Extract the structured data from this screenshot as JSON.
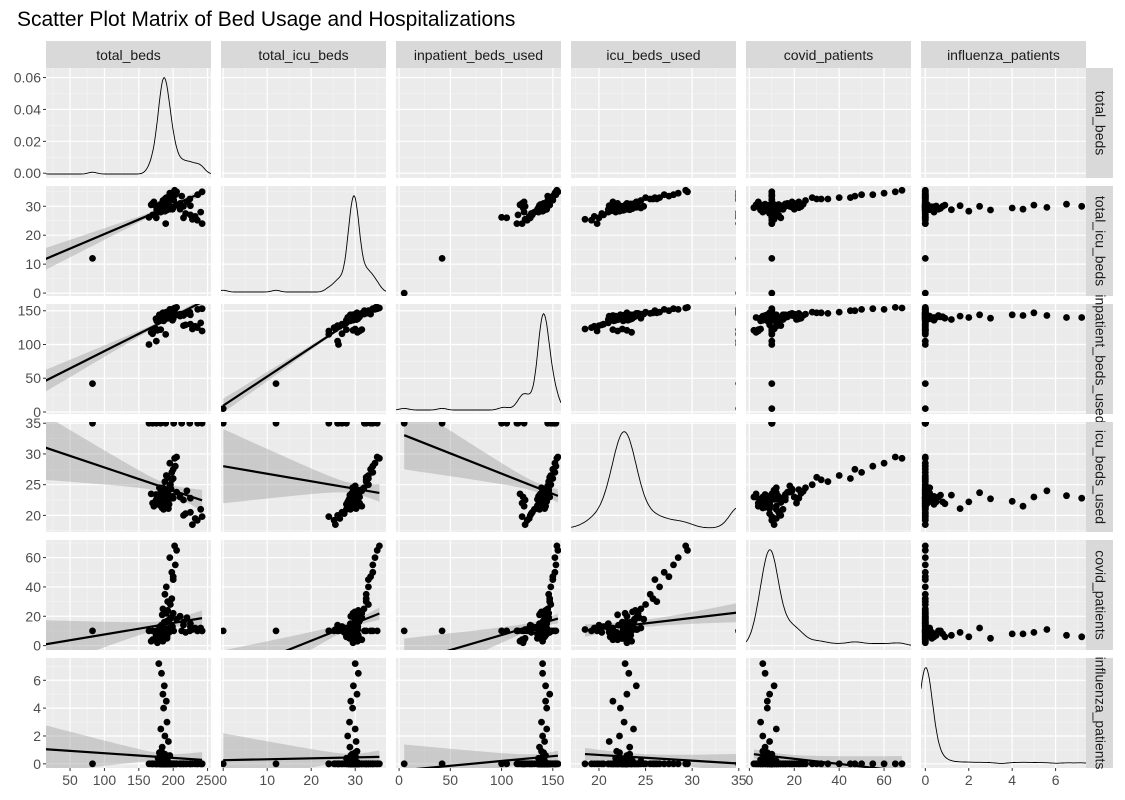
{
  "chart_data": {
    "type": "scatter",
    "title": "Scatter Plot Matrix of Bed Usage and Hospitalizations",
    "variables": [
      "total_beds",
      "total_icu_beds",
      "inpatient_beds_used",
      "icu_beds_used",
      "covid_patients",
      "influenza_patients"
    ],
    "panel_layout": "diagonal: density curve; lower triangle: scatter with linear fit and confidence band; upper triangle: scatter",
    "grid": true,
    "x_axes": [
      {
        "range": [
          15,
          255
        ],
        "ticks": [
          50,
          100,
          150,
          200,
          250
        ]
      },
      {
        "range": [
          -0.5,
          37
        ],
        "ticks": [
          0,
          10,
          20,
          30
        ]
      },
      {
        "range": [
          -3,
          158
        ],
        "ticks": [
          0,
          50,
          100,
          150
        ]
      },
      {
        "range": [
          17,
          34.7
        ],
        "ticks": [
          20,
          25,
          30,
          35
        ]
      },
      {
        "range": [
          -1.5,
          72
        ],
        "ticks": [
          0,
          20,
          40,
          60
        ]
      },
      {
        "range": [
          -0.2,
          7.4
        ],
        "ticks": [
          0,
          2,
          4,
          6
        ]
      }
    ],
    "y_axes": [
      {
        "range": [
          -0.003,
          0.066
        ],
        "ticks": [
          0.0,
          0.02,
          0.04,
          0.06
        ],
        "tick_labels": [
          "0.00",
          "0.02",
          "0.04",
          "0.06"
        ]
      },
      {
        "range": [
          -1,
          37
        ],
        "ticks": [
          0,
          10,
          20,
          30
        ]
      },
      {
        "range": [
          -3,
          160
        ],
        "ticks": [
          0,
          50,
          100,
          150
        ]
      },
      {
        "range": [
          17.3,
          35.2
        ],
        "ticks": [
          20,
          25,
          30,
          35
        ]
      },
      {
        "range": [
          -3,
          72
        ],
        "ticks": [
          0,
          20,
          40,
          60
        ]
      },
      {
        "range": [
          -0.3,
          7.6
        ],
        "ticks": [
          0,
          2,
          4,
          6
        ]
      }
    ],
    "points": [
      [
        2.0,
        0.0,
        5,
        35,
        10,
        0.0
      ],
      [
        82.7,
        12.0,
        42,
        35,
        10,
        0.0
      ],
      [
        164.8,
        26.2,
        100,
        35,
        10,
        0.0
      ],
      [
        170.1,
        27.0,
        116,
        35,
        10,
        0.0
      ],
      [
        175.4,
        26.0,
        105,
        35,
        10,
        0.0
      ],
      [
        181.8,
        28.0,
        122,
        35,
        10,
        0.0
      ],
      [
        189.1,
        24.0,
        115,
        35,
        10,
        0.0
      ],
      [
        200.7,
        32.1,
        150,
        35,
        10,
        0.0
      ],
      [
        212.4,
        33.5,
        145,
        35,
        10,
        0.0
      ],
      [
        224.1,
        32.5,
        148,
        35,
        10,
        0.0
      ],
      [
        235.6,
        34.0,
        152,
        35,
        10,
        0.0
      ],
      [
        242.0,
        35.0,
        153,
        35,
        10,
        0.0
      ],
      [
        179.0,
        30.0,
        140,
        22.8,
        6.0,
        7.2
      ],
      [
        183.0,
        30.7,
        140,
        23.2,
        7.0,
        6.5
      ],
      [
        187.0,
        29.6,
        143,
        24.0,
        11.0,
        5.6
      ],
      [
        185.0,
        30.4,
        147,
        23.0,
        9.0,
        5.0
      ],
      [
        190.0,
        29.0,
        143,
        21.5,
        8.0,
        4.5
      ],
      [
        186.0,
        29.4,
        144,
        22.3,
        8.0,
        4.0
      ],
      [
        191.0,
        28.7,
        139,
        22.7,
        5.0,
        3.0
      ],
      [
        182.0,
        30.0,
        144,
        23.7,
        12.0,
        2.5
      ],
      [
        188.0,
        28.3,
        140,
        22.2,
        6.0,
        2.0
      ],
      [
        193.0,
        30.2,
        142,
        21.1,
        9.0,
        1.6
      ],
      [
        184.0,
        28.8,
        137,
        23.3,
        7.0,
        1.2
      ],
      [
        180.0,
        30.0,
        141,
        22.2,
        8.0,
        0.8
      ],
      [
        195.0,
        29.0,
        143,
        23.0,
        10.0,
        0.6
      ],
      [
        178.0,
        28.0,
        136,
        21.8,
        6.0,
        0.4
      ],
      [
        185.0,
        29.8,
        138,
        22.5,
        5.0,
        0.3
      ],
      [
        192.0,
        29.2,
        141,
        23.6,
        11.0,
        0.2
      ],
      [
        187.0,
        30.5,
        139,
        22.0,
        7.0,
        0.1
      ],
      [
        183.0,
        29.1,
        136,
        21.4,
        9.0,
        0.0
      ],
      [
        189.0,
        28.6,
        140,
        22.4,
        8.0,
        0.0
      ],
      [
        181.0,
        30.3,
        137,
        23.0,
        6.0,
        0.0
      ],
      [
        194.0,
        29.5,
        142,
        22.6,
        12.0,
        0.0
      ],
      [
        186.0,
        28.9,
        135,
        21.6,
        5.0,
        0.0
      ],
      [
        175.0,
        30.1,
        138,
        23.4,
        7.0,
        0.0
      ],
      [
        196.0,
        29.9,
        144,
        22.9,
        10.0,
        0.0
      ],
      [
        184.0,
        29.3,
        139,
        21.2,
        6.0,
        0.0
      ],
      [
        190.0,
        30.6,
        143,
        24.1,
        11.0,
        0.0
      ],
      [
        188.0,
        28.5,
        137,
        22.1,
        8.0,
        0.0
      ],
      [
        182.0,
        29.7,
        141,
        21.9,
        9.0,
        0.0
      ],
      [
        199.0,
        29.0,
        136,
        23.1,
        13.0,
        0.0
      ],
      [
        185.0,
        28.4,
        140,
        21.3,
        7.0,
        0.0
      ],
      [
        191.0,
        30.0,
        142,
        22.7,
        6.0,
        0.0
      ],
      [
        187.0,
        29.4,
        138,
        23.5,
        10.0,
        0.0
      ],
      [
        180.0,
        28.9,
        144,
        22.3,
        8.0,
        0.0
      ],
      [
        193.0,
        30.2,
        139,
        21.7,
        9.0,
        0.0
      ],
      [
        200.0,
        33.0,
        150,
        26.0,
        45.0,
        0.0
      ],
      [
        198.0,
        34.0,
        152,
        27.0,
        50.0,
        0.0
      ],
      [
        205.0,
        35.0,
        155,
        29.5,
        65.0,
        0.0
      ],
      [
        202.0,
        35.5,
        154,
        29.3,
        68.0,
        0.0
      ],
      [
        195.0,
        34.5,
        152,
        28.5,
        60.0,
        0.0
      ],
      [
        203.0,
        34.0,
        153,
        28.0,
        55.0,
        0.0
      ],
      [
        190.0,
        33.0,
        148,
        26.5,
        40.0,
        0.0
      ],
      [
        200.0,
        33.5,
        150,
        27.5,
        47.0,
        0.0
      ],
      [
        188.0,
        32.5,
        146,
        25.5,
        35.0,
        0.0
      ],
      [
        192.0,
        32.5,
        147,
        26.2,
        30.0,
        0.0
      ],
      [
        196.0,
        33.0,
        148,
        25.0,
        28.0,
        0.0
      ],
      [
        185.0,
        32.0,
        145,
        24.5,
        25.0,
        0.0
      ],
      [
        198.0,
        32.5,
        147,
        25.8,
        32.0,
        0.0
      ],
      [
        190.0,
        31.5,
        146,
        24.2,
        22.0,
        0.0
      ],
      [
        205.0,
        30.5,
        144,
        23.8,
        18.0,
        0.0
      ],
      [
        210.0,
        31.0,
        145,
        23.0,
        20.0,
        0.0
      ],
      [
        215.0,
        30.0,
        143,
        22.5,
        16.0,
        0.0
      ],
      [
        220.0,
        31.5,
        146,
        24.0,
        19.0,
        0.0
      ],
      [
        225.0,
        30.2,
        144,
        22.8,
        15.0,
        0.0
      ],
      [
        215.0,
        26.0,
        128,
        20.0,
        14.0,
        0.0
      ],
      [
        225.0,
        27.0,
        130,
        20.5,
        13.0,
        0.0
      ],
      [
        232.0,
        26.5,
        127,
        19.5,
        12.0,
        0.0
      ],
      [
        240.0,
        28.0,
        132,
        21.0,
        12.0,
        0.0
      ],
      [
        228.0,
        25.5,
        123,
        18.5,
        11.0,
        0.0
      ],
      [
        235.0,
        25.2,
        125,
        19.2,
        10.0,
        0.0
      ],
      [
        242.0,
        24.0,
        120,
        19.8,
        10.0,
        0.0
      ],
      [
        218.0,
        27.5,
        129,
        20.3,
        9.0,
        0.0
      ],
      [
        170.0,
        31.0,
        120,
        22.0,
        4.0,
        0.0
      ],
      [
        168.0,
        30.5,
        118,
        23.5,
        3.0,
        0.0
      ],
      [
        175.0,
        30.0,
        123,
        22.5,
        5.0,
        0.0
      ],
      [
        172.0,
        31.5,
        122,
        21.5,
        4.0,
        0.0
      ],
      [
        177.0,
        29.5,
        121,
        23.0,
        2.0,
        0.0
      ],
      [
        185.0,
        29.0,
        137,
        22.5,
        8.0,
        0.1
      ],
      [
        186.0,
        29.6,
        138,
        23.0,
        9.0,
        0.3
      ],
      [
        184.0,
        30.1,
        140,
        22.2,
        7.0,
        0.5
      ],
      [
        188.0,
        29.3,
        141,
        23.3,
        10.0,
        0.7
      ],
      [
        183.0,
        30.4,
        139,
        21.9,
        6.0,
        0.9
      ],
      [
        187.0,
        28.8,
        142,
        22.6,
        11.0,
        0.2
      ],
      [
        189.0,
        29.8,
        140,
        23.1,
        8.0,
        0.4
      ],
      [
        185.0,
        30.0,
        143,
        22.4,
        7.0,
        0.1
      ],
      [
        180.0,
        29.4,
        139,
        24.5,
        12.0,
        0.2
      ],
      [
        186.0,
        28.9,
        137,
        21.0,
        15.0,
        0.0
      ],
      [
        210.0,
        29.0,
        142,
        23.0,
        20.0,
        0.0
      ],
      [
        195.0,
        30.0,
        145,
        24.8,
        18.0,
        0.0
      ],
      [
        200.0,
        29.5,
        138,
        22.8,
        22.0,
        0.0
      ],
      [
        192.0,
        31.0,
        141,
        23.8,
        17.0,
        0.0
      ],
      [
        188.0,
        30.8,
        144,
        23.4,
        16.0,
        0.0
      ],
      [
        183.0,
        29.2,
        140,
        22.1,
        14.0,
        0.0
      ],
      [
        181.0,
        30.6,
        138,
        22.9,
        13.0,
        0.0
      ],
      [
        197.0,
        29.7,
        143,
        24.3,
        19.0,
        0.0
      ],
      [
        184.0,
        30.3,
        137,
        22.0,
        21.0,
        0.0
      ],
      [
        190.0,
        29.9,
        139,
        23.6,
        23.0,
        0.0
      ],
      [
        186.0,
        28.7,
        142,
        21.5,
        12.0,
        0.0
      ],
      [
        182.0,
        29.5,
        136,
        22.7,
        11.0,
        0.0
      ],
      [
        187.0,
        30.2,
        140,
        22.9,
        16.0,
        0.0
      ],
      [
        179.0,
        29.0,
        141,
        23.2,
        10.0,
        0.0
      ],
      [
        194.0,
        30.4,
        142,
        21.8,
        9.0,
        0.0
      ],
      [
        176.0,
        28.6,
        135,
        22.6,
        8.0,
        0.0
      ],
      [
        188.0,
        29.6,
        139,
        22.4,
        5.0,
        0.0
      ],
      [
        185.0,
        30.0,
        140,
        23.0,
        3.0,
        0.0
      ],
      [
        192.0,
        30.7,
        143,
        23.9,
        24.0,
        0.0
      ]
    ]
  }
}
